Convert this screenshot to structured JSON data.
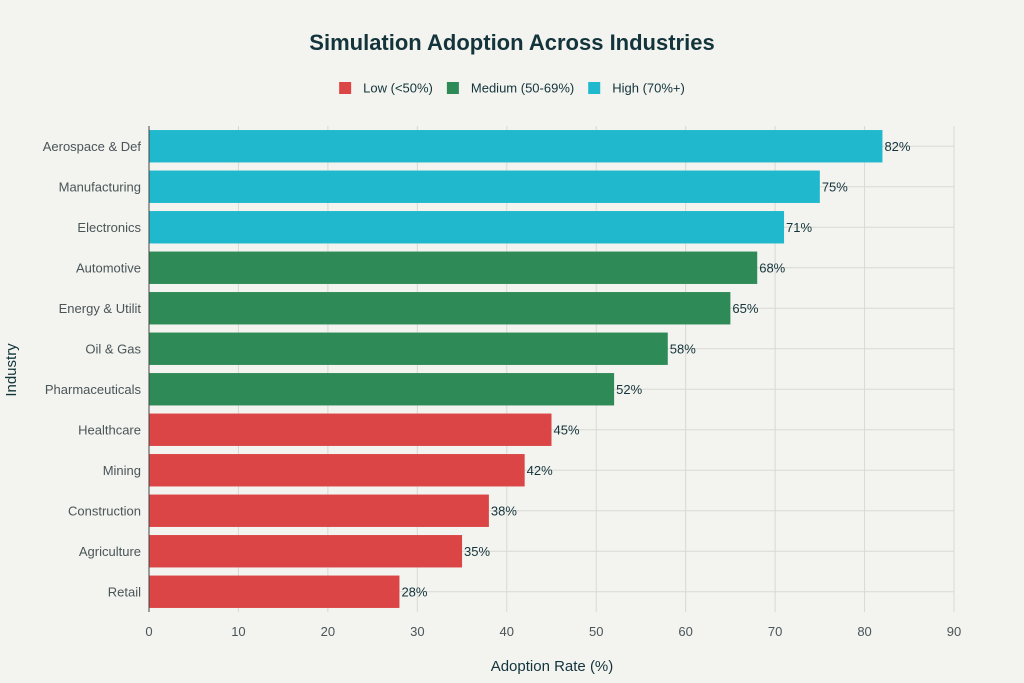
{
  "chart_data": {
    "type": "bar",
    "orientation": "horizontal",
    "title": "Simulation Adoption Across Industries",
    "xlabel": "Adoption Rate (%)",
    "ylabel": "Industry",
    "xlim": [
      0,
      90
    ],
    "xticks": [
      0,
      10,
      20,
      30,
      40,
      50,
      60,
      70,
      80,
      90
    ],
    "grid": true,
    "legend": {
      "position": "top-center",
      "entries": [
        {
          "key": "low",
          "label": "Low (<50%)",
          "color": "#db4545"
        },
        {
          "key": "medium",
          "label": "Medium (50-69%)",
          "color": "#2e8b57"
        },
        {
          "key": "high",
          "label": "High (70%+)",
          "color": "#1fb8cd"
        }
      ]
    },
    "categories": [
      "Aerospace & Def",
      "Manufacturing",
      "Electronics",
      "Automotive",
      "Energy & Utilit",
      "Oil & Gas",
      "Pharmaceuticals",
      "Healthcare",
      "Mining",
      "Construction",
      "Agriculture",
      "Retail"
    ],
    "values": [
      82,
      75,
      71,
      68,
      65,
      58,
      52,
      45,
      42,
      38,
      35,
      28
    ],
    "value_labels": [
      "82%",
      "75%",
      "71%",
      "68%",
      "65%",
      "58%",
      "52%",
      "45%",
      "42%",
      "38%",
      "35%",
      "28%"
    ],
    "groups": [
      "high",
      "high",
      "high",
      "medium",
      "medium",
      "medium",
      "medium",
      "low",
      "low",
      "low",
      "low",
      "low"
    ]
  }
}
